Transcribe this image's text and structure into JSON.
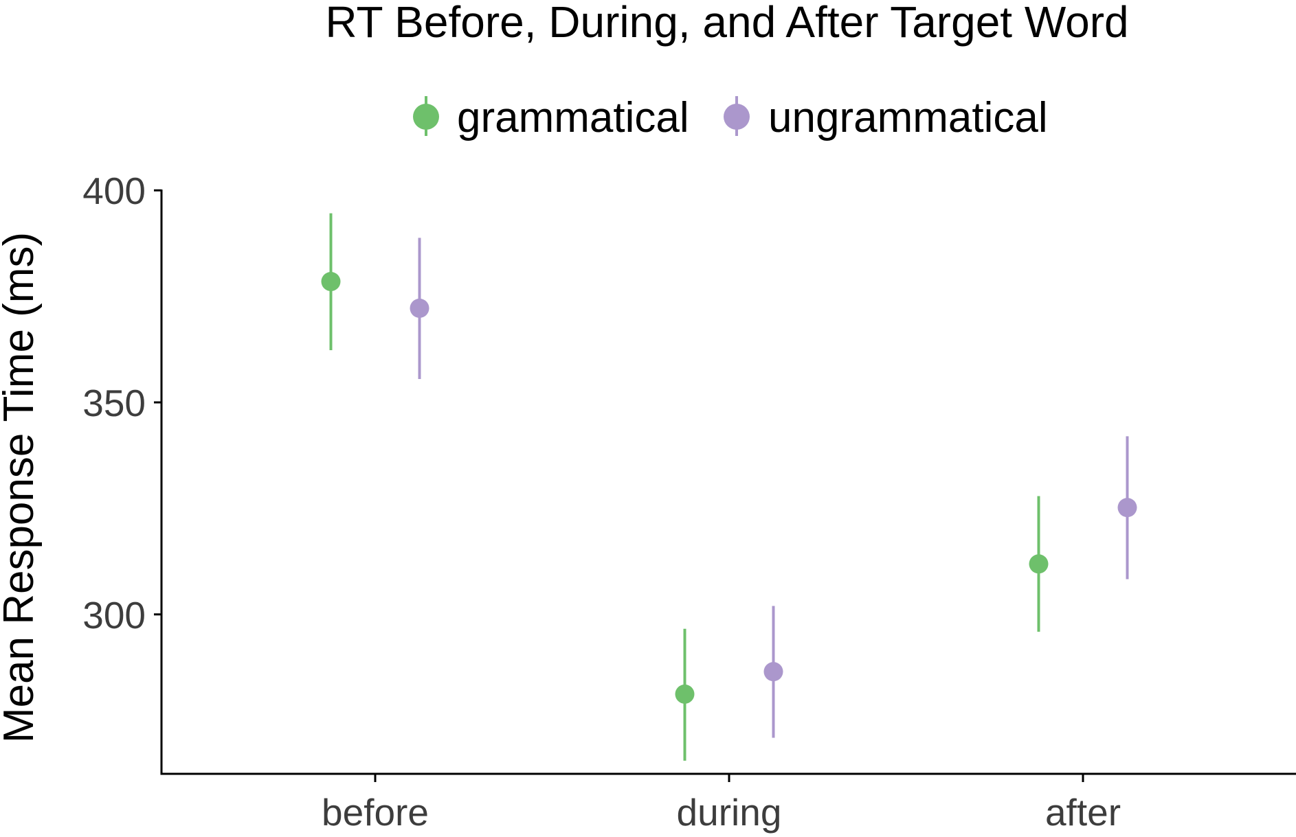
{
  "chart_data": {
    "type": "scatter",
    "subtype": "pointrange",
    "title": "RT Before, During, and After Target Word",
    "xlabel": "",
    "ylabel": "Mean Response Time (ms)",
    "categories": [
      "before",
      "during",
      "after"
    ],
    "ylim": [
      262.4,
      400.2
    ],
    "yticks": [
      300,
      350,
      400
    ],
    "legend_position": "top",
    "grid": false,
    "series": [
      {
        "name": "grammatical",
        "color": "#6ec06b",
        "values": [
          378.5,
          281.2,
          311.9
        ],
        "lower": [
          362.3,
          265.5,
          295.9
        ],
        "upper": [
          394.6,
          296.6,
          327.9
        ]
      },
      {
        "name": "ungrammatical",
        "color": "#ab97cc",
        "values": [
          372.2,
          286.5,
          325.2
        ],
        "lower": [
          355.5,
          270.9,
          308.3
        ],
        "upper": [
          388.8,
          302.0,
          342.0
        ]
      }
    ]
  }
}
